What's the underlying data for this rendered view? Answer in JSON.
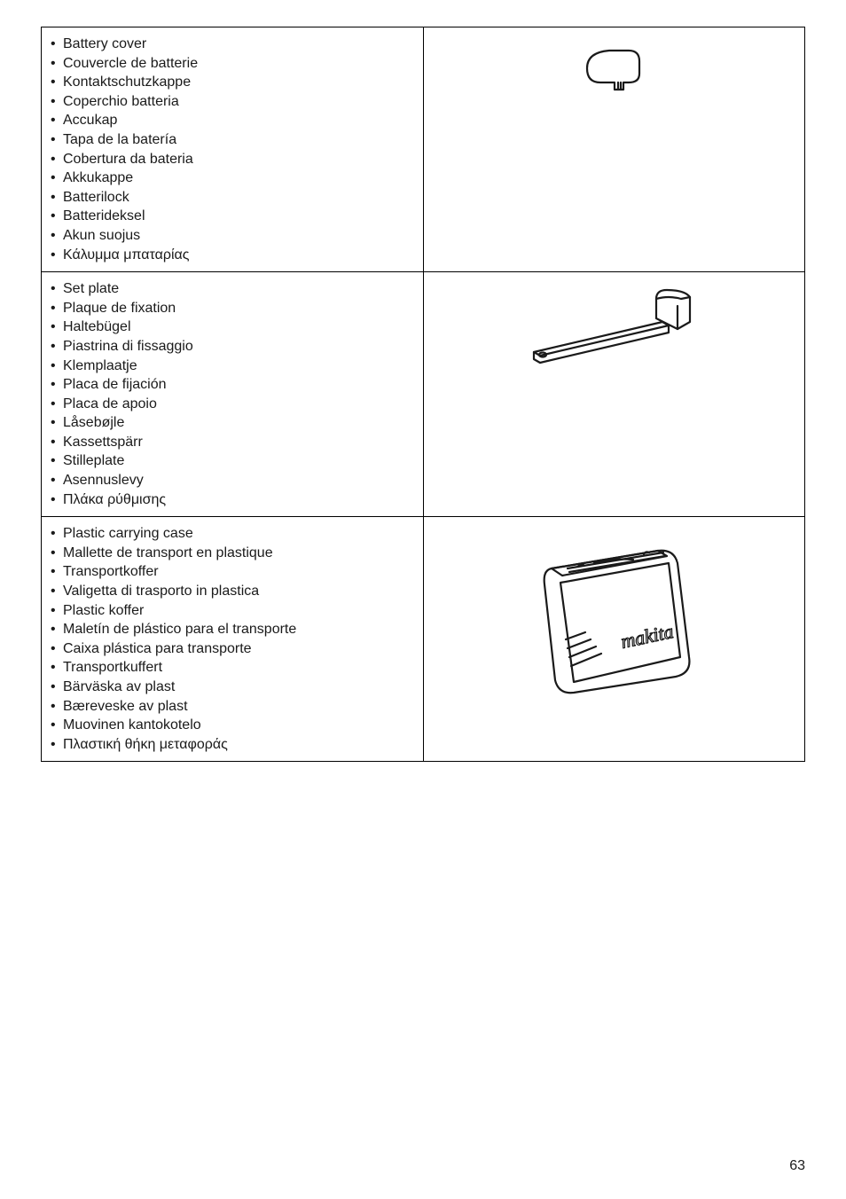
{
  "page_number": "63",
  "rows": [
    {
      "terms": [
        "Battery cover",
        "Couvercle de batterie",
        "Kontaktschutzkappe",
        "Coperchio batteria",
        "Accukap",
        "Tapa de la batería",
        "Cobertura da bateria",
        "Akkukappe",
        "Batterilock",
        "Batterideksel",
        "Akun suojus",
        "Κάλυμμα μπαταρίας"
      ],
      "image": "battery-cover"
    },
    {
      "terms": [
        "Set plate",
        "Plaque de fixation",
        "Haltebügel",
        "Piastrina di fissaggio",
        "Klemplaatje",
        "Placa de fijación",
        "Placa de apoio",
        "Låsebøjle",
        "Kassettspärr",
        "Stilleplate",
        "Asennuslevy",
        "Πλάκα ρύθμισης"
      ],
      "image": "set-plate"
    },
    {
      "terms": [
        "Plastic carrying case",
        "Mallette de transport en plastique",
        "Transportkoffer",
        "Valigetta di trasporto in plastica",
        "Plastic koffer",
        "Maletín de plástico para el transporte",
        "Caixa plástica para transporte",
        "Transportkuffert",
        "Bärväska av plast",
        "Bæreveske av plast",
        "Muovinen kantokotelo",
        "Πλαστική θήκη μεταφοράς"
      ],
      "image": "carrying-case",
      "case_label": "makita"
    }
  ],
  "colors": {
    "border": "#000000",
    "text": "#1a1a1a",
    "background": "#ffffff"
  }
}
